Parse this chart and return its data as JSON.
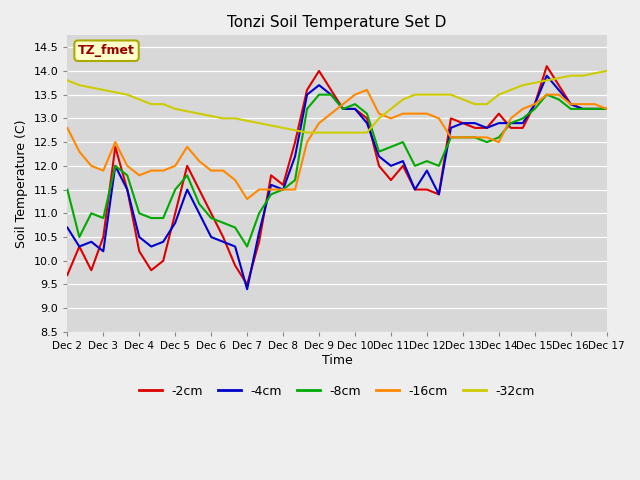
{
  "title": "Tonzi Soil Temperature Set D",
  "xlabel": "Time",
  "ylabel": "Soil Temperature (C)",
  "ylim": [
    8.5,
    14.75
  ],
  "background_color": "#eeeeee",
  "plot_bg_color": "#d8d8d8",
  "annotation_text": "TZ_fmet",
  "annotation_bg": "#ffffcc",
  "annotation_fg": "#990000",
  "legend_labels": [
    "-2cm",
    "-4cm",
    "-8cm",
    "-16cm",
    "-32cm"
  ],
  "legend_colors": [
    "#dd0000",
    "#0000cc",
    "#00aa00",
    "#ff8800",
    "#cccc00"
  ],
  "xtick_labels": [
    "Dec 2",
    "Dec 3",
    "Dec 4",
    "Dec 5",
    "Dec 6",
    "Dec 7",
    "Dec 8",
    "Dec 9",
    "Dec 10",
    "Dec 11",
    "Dec 12",
    "Dec 13",
    "Dec 14",
    "Dec 15",
    "Dec 16",
    "Dec 17"
  ],
  "ytick_values": [
    8.5,
    9.0,
    9.5,
    10.0,
    10.5,
    11.0,
    11.5,
    12.0,
    12.5,
    13.0,
    13.5,
    14.0,
    14.5
  ],
  "series": {
    "m2cm": [
      9.7,
      10.3,
      9.8,
      10.5,
      12.4,
      11.5,
      10.2,
      9.8,
      10.0,
      11.0,
      12.0,
      11.5,
      11.0,
      10.5,
      9.9,
      9.5,
      10.4,
      11.8,
      11.6,
      12.5,
      13.6,
      14.0,
      13.6,
      13.2,
      13.2,
      13.0,
      12.0,
      11.7,
      12.0,
      11.5,
      11.5,
      11.4,
      13.0,
      12.9,
      12.8,
      12.8,
      13.1,
      12.8,
      12.8,
      13.3,
      14.1,
      13.7,
      13.3,
      13.2,
      13.2,
      13.2
    ],
    "m4cm": [
      10.7,
      10.3,
      10.4,
      10.2,
      12.0,
      11.5,
      10.5,
      10.3,
      10.4,
      10.8,
      11.5,
      11.0,
      10.5,
      10.4,
      10.3,
      9.4,
      10.6,
      11.6,
      11.5,
      12.2,
      13.5,
      13.7,
      13.5,
      13.2,
      13.2,
      12.9,
      12.2,
      12.0,
      12.1,
      11.5,
      11.9,
      11.4,
      12.8,
      12.9,
      12.9,
      12.8,
      12.9,
      12.9,
      12.9,
      13.3,
      13.9,
      13.6,
      13.3,
      13.2,
      13.2,
      13.2
    ],
    "m8cm": [
      11.5,
      10.5,
      11.0,
      10.9,
      12.0,
      11.8,
      11.0,
      10.9,
      10.9,
      11.5,
      11.8,
      11.2,
      10.9,
      10.8,
      10.7,
      10.3,
      11.0,
      11.4,
      11.5,
      11.7,
      13.2,
      13.5,
      13.5,
      13.2,
      13.3,
      13.1,
      12.3,
      12.4,
      12.5,
      12.0,
      12.1,
      12.0,
      12.6,
      12.6,
      12.6,
      12.5,
      12.6,
      12.9,
      13.0,
      13.2,
      13.5,
      13.4,
      13.2,
      13.2,
      13.2,
      13.2
    ],
    "m16cm": [
      12.8,
      12.3,
      12.0,
      11.9,
      12.5,
      12.0,
      11.8,
      11.9,
      11.9,
      12.0,
      12.4,
      12.1,
      11.9,
      11.9,
      11.7,
      11.3,
      11.5,
      11.5,
      11.5,
      11.5,
      12.5,
      12.9,
      13.1,
      13.3,
      13.5,
      13.6,
      13.1,
      13.0,
      13.1,
      13.1,
      13.1,
      13.0,
      12.6,
      12.6,
      12.6,
      12.6,
      12.5,
      13.0,
      13.2,
      13.3,
      13.5,
      13.5,
      13.3,
      13.3,
      13.3,
      13.2
    ],
    "m32cm": [
      13.8,
      13.7,
      13.65,
      13.6,
      13.55,
      13.5,
      13.4,
      13.3,
      13.3,
      13.2,
      13.15,
      13.1,
      13.05,
      13.0,
      13.0,
      12.95,
      12.9,
      12.85,
      12.8,
      12.75,
      12.7,
      12.7,
      12.7,
      12.7,
      12.7,
      12.7,
      13.0,
      13.2,
      13.4,
      13.5,
      13.5,
      13.5,
      13.5,
      13.4,
      13.3,
      13.3,
      13.5,
      13.6,
      13.7,
      13.75,
      13.8,
      13.85,
      13.9,
      13.9,
      13.95,
      14.0
    ]
  }
}
